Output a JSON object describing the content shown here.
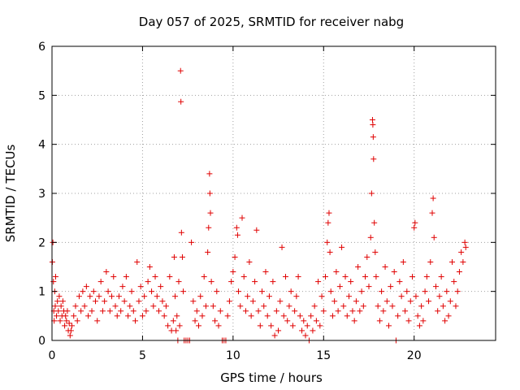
{
  "chart_data": {
    "type": "scatter",
    "title": "Day 057 of 2025, SRMTID for receiver nabg",
    "xlabel": "GPS time / hours",
    "ylabel": "SRMTID / TECUs",
    "xlim": [
      0,
      24.5
    ],
    "ylim": [
      0,
      6
    ],
    "x_ticks": [
      0,
      5,
      10,
      15,
      20
    ],
    "x_tick_labels": [
      "0",
      "5",
      "10",
      "15",
      "20"
    ],
    "y_ticks": [
      0,
      1,
      2,
      3,
      4,
      5,
      6
    ],
    "y_tick_labels": [
      "0",
      "1",
      "2",
      "3",
      "4",
      "5",
      "6"
    ],
    "grid": true,
    "marker": "+",
    "marker_color": "#e00000",
    "series": [
      {
        "name": "SRMTID",
        "points": [
          [
            0.02,
            1.6
          ],
          [
            0.05,
            2.0
          ],
          [
            0.08,
            1.2
          ],
          [
            0.1,
            0.6
          ],
          [
            0.12,
            0.4
          ],
          [
            0.15,
            1.0
          ],
          [
            0.18,
            0.7
          ],
          [
            0.2,
            1.3
          ],
          [
            0.25,
            0.5
          ],
          [
            0.3,
            0.8
          ],
          [
            0.35,
            0.6
          ],
          [
            0.4,
            0.9
          ],
          [
            0.45,
            0.4
          ],
          [
            0.5,
            0.7
          ],
          [
            0.55,
            0.5
          ],
          [
            0.6,
            0.8
          ],
          [
            0.65,
            0.6
          ],
          [
            0.7,
            0.3
          ],
          [
            0.75,
            0.5
          ],
          [
            0.8,
            0.4
          ],
          [
            0.85,
            0.6
          ],
          [
            0.9,
            0.2
          ],
          [
            0.95,
            0.35
          ],
          [
            1.0,
            0.1
          ],
          [
            1.05,
            0.2
          ],
          [
            1.1,
            0.3
          ],
          [
            1.2,
            0.5
          ],
          [
            1.3,
            0.7
          ],
          [
            1.4,
            0.4
          ],
          [
            1.5,
            0.9
          ],
          [
            1.6,
            0.6
          ],
          [
            1.7,
            1.0
          ],
          [
            1.8,
            0.7
          ],
          [
            1.9,
            1.1
          ],
          [
            2.0,
            0.5
          ],
          [
            2.1,
            0.9
          ],
          [
            2.2,
            0.6
          ],
          [
            2.3,
            1.0
          ],
          [
            2.4,
            0.8
          ],
          [
            2.5,
            0.4
          ],
          [
            2.6,
            0.9
          ],
          [
            2.7,
            1.2
          ],
          [
            2.8,
            0.6
          ],
          [
            2.9,
            0.8
          ],
          [
            3.0,
            1.4
          ],
          [
            3.1,
            1.0
          ],
          [
            3.2,
            0.6
          ],
          [
            3.3,
            0.9
          ],
          [
            3.4,
            1.3
          ],
          [
            3.5,
            0.7
          ],
          [
            3.6,
            0.5
          ],
          [
            3.7,
            0.9
          ],
          [
            3.8,
            0.6
          ],
          [
            3.9,
            1.1
          ],
          [
            4.0,
            0.8
          ],
          [
            4.1,
            1.3
          ],
          [
            4.2,
            0.5
          ],
          [
            4.3,
            0.7
          ],
          [
            4.4,
            1.0
          ],
          [
            4.5,
            0.6
          ],
          [
            4.6,
            0.4
          ],
          [
            4.7,
            1.6
          ],
          [
            4.8,
            0.8
          ],
          [
            4.9,
            1.1
          ],
          [
            5.0,
            0.5
          ],
          [
            5.1,
            0.9
          ],
          [
            5.2,
            0.6
          ],
          [
            5.3,
            1.2
          ],
          [
            5.4,
            1.5
          ],
          [
            5.5,
            1.0
          ],
          [
            5.6,
            0.7
          ],
          [
            5.7,
            1.3
          ],
          [
            5.8,
            0.9
          ],
          [
            5.9,
            0.6
          ],
          [
            6.0,
            1.1
          ],
          [
            6.1,
            0.8
          ],
          [
            6.2,
            0.5
          ],
          [
            6.3,
            0.7
          ],
          [
            6.4,
            0.3
          ],
          [
            6.5,
            1.3
          ],
          [
            6.6,
            0.2
          ],
          [
            6.7,
            0.4
          ],
          [
            6.75,
            1.7
          ],
          [
            6.8,
            0.9
          ],
          [
            6.85,
            0.2
          ],
          [
            6.9,
            0.5
          ],
          [
            6.95,
            0.0
          ],
          [
            7.0,
            1.2
          ],
          [
            7.05,
            0.3
          ],
          [
            7.1,
            5.5
          ],
          [
            7.12,
            4.87
          ],
          [
            7.15,
            2.2
          ],
          [
            7.2,
            1.7
          ],
          [
            7.25,
            1.0
          ],
          [
            7.3,
            0.0
          ],
          [
            7.4,
            0.0
          ],
          [
            7.5,
            0.0
          ],
          [
            7.6,
            0.0
          ],
          [
            7.7,
            2.0
          ],
          [
            7.8,
            0.8
          ],
          [
            7.9,
            0.4
          ],
          [
            8.0,
            0.6
          ],
          [
            8.1,
            0.3
          ],
          [
            8.2,
            0.9
          ],
          [
            8.3,
            0.5
          ],
          [
            8.4,
            1.3
          ],
          [
            8.5,
            0.7
          ],
          [
            8.6,
            1.8
          ],
          [
            8.65,
            2.3
          ],
          [
            8.7,
            3.4
          ],
          [
            8.72,
            3.0
          ],
          [
            8.75,
            2.6
          ],
          [
            8.8,
            1.2
          ],
          [
            8.9,
            0.7
          ],
          [
            9.0,
            0.4
          ],
          [
            9.1,
            1.0
          ],
          [
            9.2,
            0.3
          ],
          [
            9.3,
            0.6
          ],
          [
            9.4,
            0.0
          ],
          [
            9.5,
            0.0
          ],
          [
            9.6,
            0.0
          ],
          [
            9.7,
            0.5
          ],
          [
            9.8,
            0.8
          ],
          [
            9.9,
            1.2
          ],
          [
            10.0,
            1.4
          ],
          [
            10.1,
            1.7
          ],
          [
            10.2,
            2.3
          ],
          [
            10.25,
            2.15
          ],
          [
            10.3,
            1.0
          ],
          [
            10.4,
            0.7
          ],
          [
            10.5,
            2.5
          ],
          [
            10.6,
            1.3
          ],
          [
            10.7,
            0.6
          ],
          [
            10.8,
            0.9
          ],
          [
            10.9,
            1.6
          ],
          [
            11.0,
            0.5
          ],
          [
            11.1,
            0.8
          ],
          [
            11.2,
            1.2
          ],
          [
            11.3,
            2.25
          ],
          [
            11.4,
            0.6
          ],
          [
            11.5,
            0.3
          ],
          [
            11.6,
            1.0
          ],
          [
            11.7,
            0.7
          ],
          [
            11.8,
            1.4
          ],
          [
            11.9,
            0.5
          ],
          [
            12.0,
            0.9
          ],
          [
            12.1,
            0.3
          ],
          [
            12.2,
            1.2
          ],
          [
            12.3,
            0.1
          ],
          [
            12.4,
            0.6
          ],
          [
            12.5,
            0.2
          ],
          [
            12.6,
            0.8
          ],
          [
            12.7,
            1.9
          ],
          [
            12.8,
            0.5
          ],
          [
            12.9,
            1.3
          ],
          [
            13.0,
            0.4
          ],
          [
            13.1,
            0.7
          ],
          [
            13.2,
            1.0
          ],
          [
            13.3,
            0.3
          ],
          [
            13.4,
            0.6
          ],
          [
            13.5,
            0.9
          ],
          [
            13.6,
            1.3
          ],
          [
            13.7,
            0.5
          ],
          [
            13.8,
            0.2
          ],
          [
            13.9,
            0.4
          ],
          [
            14.0,
            0.1
          ],
          [
            14.1,
            0.3
          ],
          [
            14.2,
            0.0
          ],
          [
            14.3,
            0.5
          ],
          [
            14.4,
            0.2
          ],
          [
            14.5,
            0.7
          ],
          [
            14.6,
            0.4
          ],
          [
            14.7,
            1.2
          ],
          [
            14.8,
            0.3
          ],
          [
            14.9,
            0.9
          ],
          [
            15.0,
            0.6
          ],
          [
            15.1,
            1.3
          ],
          [
            15.2,
            2.0
          ],
          [
            15.25,
            2.4
          ],
          [
            15.3,
            2.6
          ],
          [
            15.35,
            1.8
          ],
          [
            15.4,
            1.0
          ],
          [
            15.5,
            0.5
          ],
          [
            15.6,
            0.8
          ],
          [
            15.7,
            1.4
          ],
          [
            15.8,
            0.6
          ],
          [
            15.9,
            1.1
          ],
          [
            16.0,
            1.9
          ],
          [
            16.1,
            0.7
          ],
          [
            16.2,
            1.3
          ],
          [
            16.3,
            0.5
          ],
          [
            16.4,
            0.9
          ],
          [
            16.5,
            1.2
          ],
          [
            16.6,
            0.6
          ],
          [
            16.7,
            0.4
          ],
          [
            16.8,
            0.8
          ],
          [
            16.9,
            1.5
          ],
          [
            17.0,
            0.6
          ],
          [
            17.1,
            1.0
          ],
          [
            17.2,
            0.7
          ],
          [
            17.3,
            1.3
          ],
          [
            17.4,
            1.7
          ],
          [
            17.5,
            1.1
          ],
          [
            17.6,
            2.1
          ],
          [
            17.65,
            3.0
          ],
          [
            17.7,
            4.5
          ],
          [
            17.72,
            4.4
          ],
          [
            17.74,
            4.15
          ],
          [
            17.76,
            3.7
          ],
          [
            17.8,
            2.4
          ],
          [
            17.85,
            1.8
          ],
          [
            17.9,
            1.3
          ],
          [
            18.0,
            0.7
          ],
          [
            18.1,
            0.4
          ],
          [
            18.2,
            1.0
          ],
          [
            18.3,
            0.6
          ],
          [
            18.4,
            1.5
          ],
          [
            18.5,
            0.8
          ],
          [
            18.6,
            0.3
          ],
          [
            18.7,
            1.1
          ],
          [
            18.8,
            0.7
          ],
          [
            18.9,
            1.4
          ],
          [
            19.0,
            0.0
          ],
          [
            19.1,
            0.5
          ],
          [
            19.2,
            1.2
          ],
          [
            19.3,
            0.9
          ],
          [
            19.4,
            1.6
          ],
          [
            19.5,
            0.6
          ],
          [
            19.6,
            1.0
          ],
          [
            19.7,
            0.4
          ],
          [
            19.8,
            0.8
          ],
          [
            19.9,
            1.3
          ],
          [
            20.0,
            2.3
          ],
          [
            20.05,
            2.4
          ],
          [
            20.1,
            0.9
          ],
          [
            20.2,
            0.5
          ],
          [
            20.3,
            0.3
          ],
          [
            20.4,
            0.7
          ],
          [
            20.5,
            0.4
          ],
          [
            20.6,
            1.0
          ],
          [
            20.7,
            1.3
          ],
          [
            20.8,
            0.8
          ],
          [
            20.9,
            1.6
          ],
          [
            21.0,
            2.6
          ],
          [
            21.05,
            2.9
          ],
          [
            21.1,
            2.1
          ],
          [
            21.2,
            1.1
          ],
          [
            21.3,
            0.6
          ],
          [
            21.4,
            0.9
          ],
          [
            21.5,
            1.3
          ],
          [
            21.6,
            0.7
          ],
          [
            21.7,
            0.4
          ],
          [
            21.8,
            1.0
          ],
          [
            21.9,
            0.5
          ],
          [
            22.0,
            0.8
          ],
          [
            22.1,
            1.6
          ],
          [
            22.2,
            1.2
          ],
          [
            22.3,
            0.7
          ],
          [
            22.4,
            1.0
          ],
          [
            22.5,
            1.4
          ],
          [
            22.6,
            1.8
          ],
          [
            22.7,
            1.6
          ],
          [
            22.8,
            2.0
          ],
          [
            22.85,
            1.9
          ]
        ]
      }
    ]
  }
}
